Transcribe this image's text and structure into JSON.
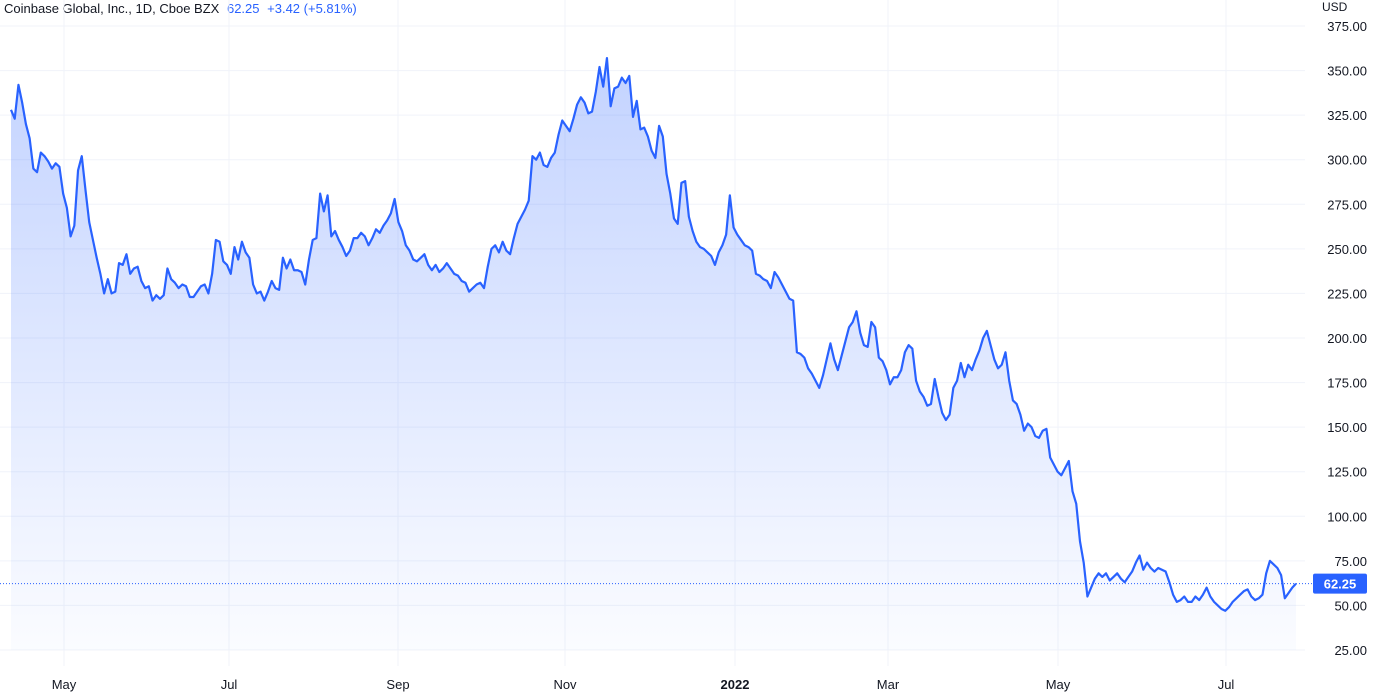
{
  "header": {
    "title": "Coinbase Global, Inc., 1D, Cboe BZX",
    "price": "62.25",
    "change": "+3.42 (+5.81%)"
  },
  "axis": {
    "currency": "USD",
    "y_tick_labels": [
      "25.00",
      "50.00",
      "75.00",
      "100.00",
      "125.00",
      "150.00",
      "175.00",
      "200.00",
      "225.00",
      "250.00",
      "275.00",
      "300.00",
      "325.00",
      "350.00",
      "375.00"
    ],
    "x_tick_labels": [
      "May",
      "Jul",
      "Sep",
      "Nov",
      "2022",
      "Mar",
      "May",
      "Jul"
    ],
    "price_tag": "62.25"
  },
  "colors": {
    "line": "#2962ff",
    "area_top": "#2962ff",
    "grid": "#f0f3fa",
    "price_tag_bg": "#2962ff"
  },
  "chart_data": {
    "type": "area",
    "title": "Coinbase Global, Inc., 1D, Cboe BZX",
    "ylabel": "USD",
    "ylim": [
      15,
      380
    ],
    "grid": true,
    "x_tick_labels": [
      "May",
      "Jul",
      "Sep",
      "Nov",
      "2022",
      "Mar",
      "May",
      "Jul"
    ],
    "last_value": 62.25,
    "series": [
      {
        "values": [
          328,
          323,
          342,
          332,
          320,
          312,
          295,
          293,
          304,
          302,
          299,
          295,
          298,
          296,
          281,
          273,
          257,
          263,
          294,
          302,
          283,
          265,
          255,
          245,
          236,
          225,
          233,
          225,
          226,
          242,
          241,
          247,
          236,
          239,
          240,
          232,
          228,
          229,
          221,
          224,
          222,
          224,
          239,
          233,
          231,
          228,
          230,
          229,
          223,
          223,
          226,
          229,
          230,
          225,
          236,
          255,
          254,
          243,
          241,
          236,
          251,
          244,
          254,
          248,
          245,
          230,
          225,
          226,
          221,
          226,
          232,
          228,
          227,
          245,
          239,
          244,
          238,
          238,
          237,
          230,
          244,
          255,
          256,
          281,
          271,
          280,
          257,
          260,
          255,
          251,
          246,
          249,
          256,
          256,
          259,
          257,
          252,
          256,
          261,
          259,
          263,
          266,
          270,
          278,
          265,
          260,
          252,
          249,
          244,
          243,
          245,
          247,
          241,
          238,
          241,
          237,
          239,
          242,
          239,
          236,
          235,
          232,
          231,
          226,
          228,
          230,
          231,
          228,
          240,
          250,
          252,
          248,
          254,
          249,
          247,
          256,
          264,
          268,
          272,
          277,
          302,
          300,
          304,
          297,
          296,
          301,
          304,
          314,
          322,
          319,
          316,
          323,
          331,
          335,
          332,
          326,
          327,
          338,
          352,
          341,
          357,
          330,
          340,
          341,
          346,
          343,
          347,
          324,
          333,
          317,
          318,
          313,
          305,
          301,
          319,
          313,
          292,
          281,
          267,
          264,
          287,
          288,
          268,
          260,
          254,
          251,
          250,
          248,
          246,
          241,
          248,
          252,
          258,
          280,
          262,
          258,
          255,
          252,
          251,
          249,
          236,
          235,
          233,
          232,
          228,
          237,
          234,
          230,
          226,
          222,
          221,
          192,
          191,
          189,
          183,
          180,
          176,
          172,
          179,
          188,
          197,
          188,
          182,
          190,
          198,
          206,
          209,
          215,
          203,
          196,
          195,
          209,
          206,
          189,
          187,
          182,
          174,
          178,
          178,
          182,
          192,
          196,
          194,
          176,
          170,
          167,
          162,
          163,
          177,
          167,
          158,
          154,
          157,
          172,
          176,
          186,
          178,
          185,
          182,
          188,
          193,
          200,
          204,
          196,
          188,
          183,
          185,
          192,
          176,
          165,
          163,
          157,
          148,
          152,
          150,
          145,
          144,
          148,
          149,
          133,
          129,
          125,
          123,
          127,
          131,
          114,
          107,
          86,
          74,
          55,
          60,
          65,
          68,
          66,
          68,
          64,
          66,
          68,
          65,
          63,
          66,
          69,
          74,
          78,
          70,
          74,
          71,
          69,
          71,
          70,
          69,
          63,
          56,
          52,
          53,
          55,
          52,
          52,
          55,
          53,
          56,
          60,
          55,
          52,
          50,
          48,
          47,
          49,
          52,
          54,
          56,
          58,
          59,
          55,
          53,
          54,
          56,
          68,
          75,
          73,
          71,
          67,
          54,
          57,
          60,
          62.25
        ]
      }
    ]
  }
}
